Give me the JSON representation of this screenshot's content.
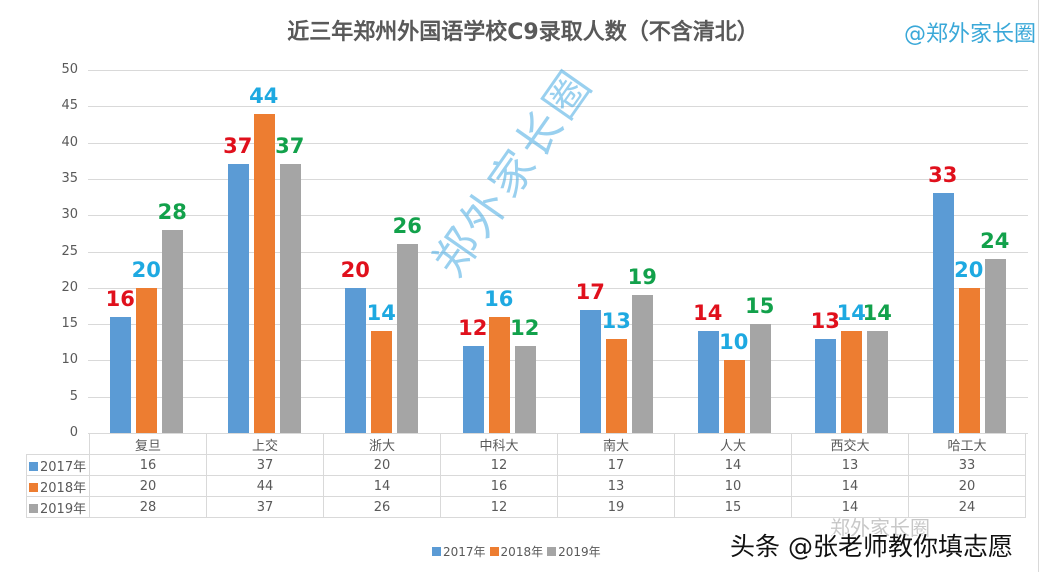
{
  "header": {
    "title": "近三年郑州外国语学校C9录取人数（不含清北）",
    "handle": "@郑外家长圈"
  },
  "watermark": "郑外家长圈",
  "footer": {
    "faint_watermark": "郑外家长圈",
    "credit": "头条 @张老师教你填志愿"
  },
  "colors": {
    "s2017": "#5b9bd5",
    "s2018": "#ed7d31",
    "s2019": "#a5a5a5",
    "label2017": "#e0101c",
    "label2018": "#1ea9e1",
    "label2019": "#12a14b"
  },
  "chart_data": {
    "type": "bar",
    "title": "近三年郑州外国语学校C9录取人数（不含清北）",
    "xlabel": "",
    "ylabel": "",
    "ylim": [
      0,
      50
    ],
    "yticks": [
      0,
      5,
      10,
      15,
      20,
      25,
      30,
      35,
      40,
      45,
      50
    ],
    "grid": true,
    "legend_position": "bottom",
    "categories": [
      "复旦",
      "上交",
      "浙大",
      "中科大",
      "南大",
      "人大",
      "西交大",
      "哈工大"
    ],
    "series": [
      {
        "name": "2017年",
        "values": [
          16,
          37,
          20,
          12,
          17,
          14,
          13,
          33
        ]
      },
      {
        "name": "2018年",
        "values": [
          20,
          44,
          14,
          16,
          13,
          10,
          14,
          20
        ]
      },
      {
        "name": "2019年",
        "values": [
          28,
          37,
          26,
          12,
          19,
          15,
          14,
          24
        ]
      }
    ],
    "data_table": true
  }
}
